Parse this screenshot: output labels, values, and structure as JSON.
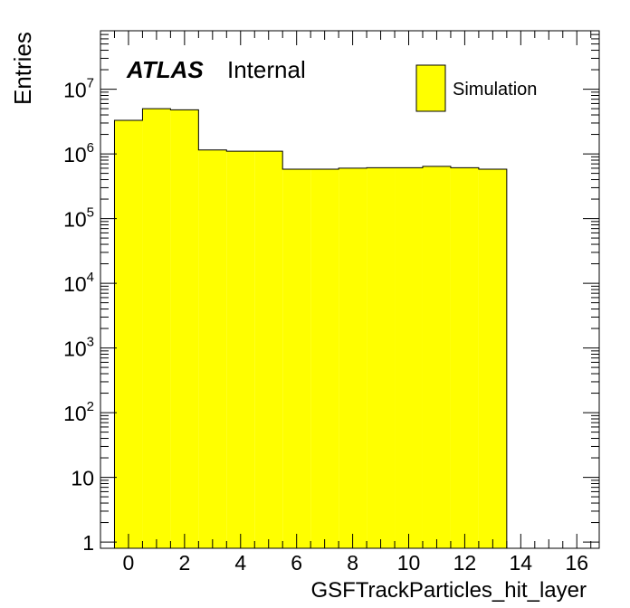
{
  "chart_data": {
    "type": "histogram",
    "title": "",
    "xlabel": "GSFTrackParticles_hit_layer",
    "ylabel": "Entries",
    "xlim": [
      -1,
      16.8
    ],
    "ylim": [
      0.8,
      80000000
    ],
    "yscale": "log",
    "x_ticks": [
      "0",
      "2",
      "4",
      "6",
      "8",
      "10",
      "12",
      "14",
      "16"
    ],
    "y_ticks": [
      {
        "base": "1",
        "exp": ""
      },
      {
        "base": "10",
        "exp": ""
      },
      {
        "base": "10",
        "exp": "2"
      },
      {
        "base": "10",
        "exp": "3"
      },
      {
        "base": "10",
        "exp": "4"
      },
      {
        "base": "10",
        "exp": "5"
      },
      {
        "base": "10",
        "exp": "6"
      },
      {
        "base": "10",
        "exp": "7"
      }
    ],
    "bin_edges": [
      -0.5,
      0.5,
      1.5,
      2.5,
      3.5,
      4.5,
      5.5,
      6.5,
      7.5,
      8.5,
      9.5,
      10.5,
      11.5,
      12.5,
      13.5
    ],
    "series": [
      {
        "name": "Simulation",
        "color": "#ffff00",
        "values": [
          3300000,
          5000000,
          4800000,
          1150000,
          1100000,
          1100000,
          580000,
          580000,
          600000,
          610000,
          610000,
          640000,
          610000,
          580000
        ]
      }
    ],
    "legend": {
      "position": "top-right",
      "entries": [
        "Simulation"
      ]
    },
    "grid": false
  },
  "atlas_label": {
    "bold": "ATLAS",
    "text": "Internal"
  }
}
